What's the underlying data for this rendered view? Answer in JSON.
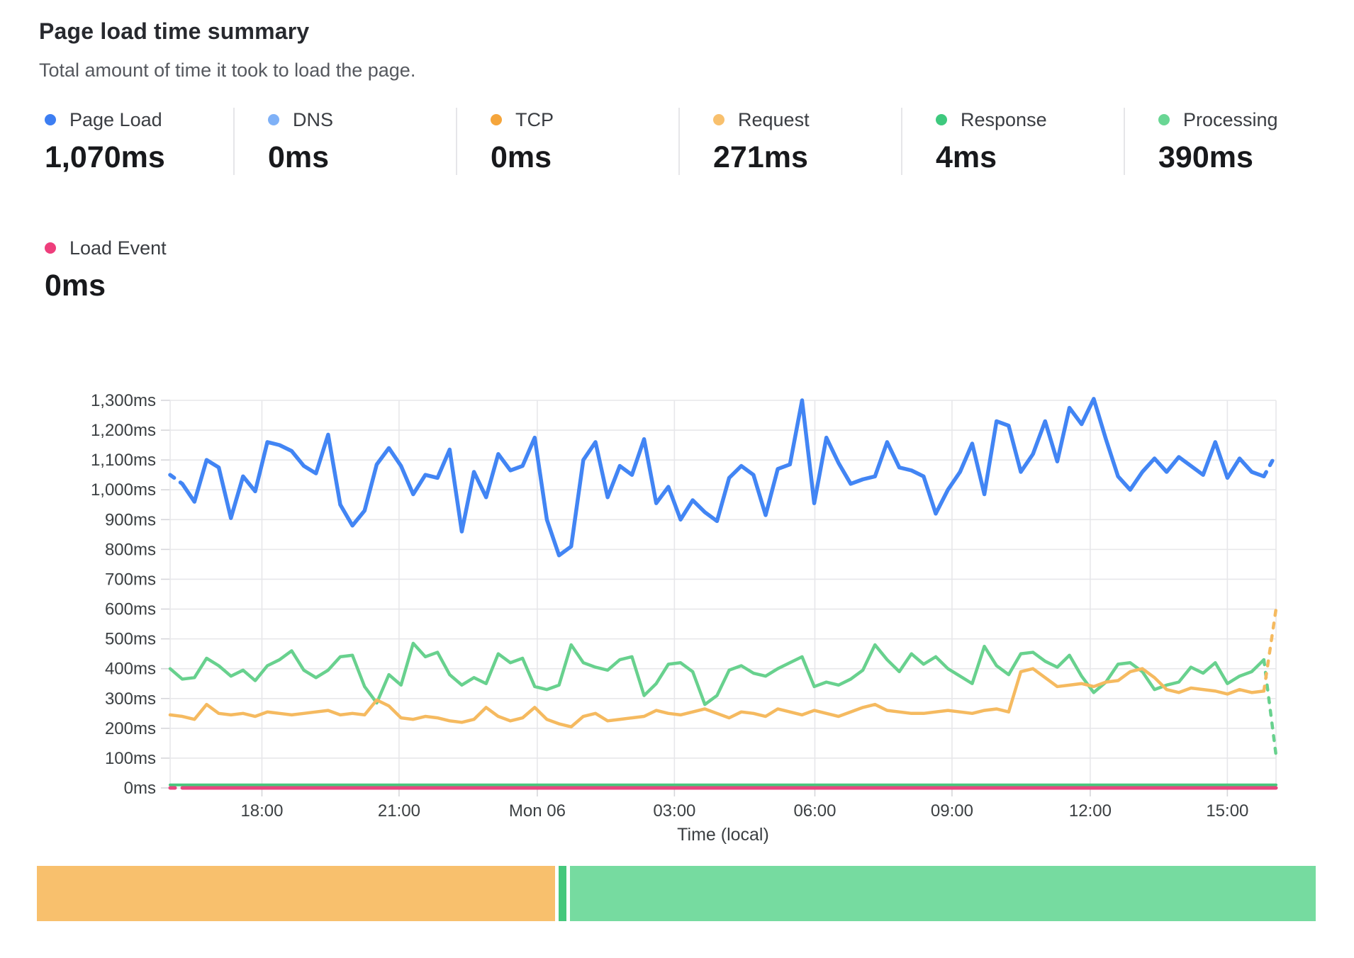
{
  "header": {
    "title": "Page load time summary",
    "subtitle": "Total amount of time it took to load the page."
  },
  "metrics": [
    {
      "label": "Page Load",
      "value": "1,070ms",
      "color": "#3d7ef2"
    },
    {
      "label": "DNS",
      "value": "0ms",
      "color": "#7fb1f7"
    },
    {
      "label": "TCP",
      "value": "0ms",
      "color": "#f5a53b"
    },
    {
      "label": "Request",
      "value": "271ms",
      "color": "#f8c06d"
    },
    {
      "label": "Response",
      "value": "4ms",
      "color": "#3ec97e"
    },
    {
      "label": "Processing",
      "value": "390ms",
      "color": "#69d694"
    }
  ],
  "secondary_metric": {
    "label": "Load Event",
    "value": "0ms",
    "color": "#ee3e7c"
  },
  "chart_data": {
    "type": "line",
    "title": "Page load time summary",
    "xlabel": "Time (local)",
    "ylabel": "ms",
    "ylim": [
      0,
      1300
    ],
    "grid": true,
    "legend_position": "top-metric-cards",
    "y_ticks": [
      "0ms",
      "100ms",
      "200ms",
      "300ms",
      "400ms",
      "500ms",
      "600ms",
      "700ms",
      "800ms",
      "900ms",
      "1,000ms",
      "1,100ms",
      "1,200ms",
      "1,300ms"
    ],
    "x_ticks": [
      {
        "label": "18:00",
        "f": 0.083
      },
      {
        "label": "21:00",
        "f": 0.207
      },
      {
        "label": "Mon 06",
        "f": 0.332
      },
      {
        "label": "03:00",
        "f": 0.456
      },
      {
        "label": "06:00",
        "f": 0.583
      },
      {
        "label": "09:00",
        "f": 0.707
      },
      {
        "label": "12:00",
        "f": 0.832
      },
      {
        "label": "15:00",
        "f": 0.956
      }
    ],
    "series": [
      {
        "name": "Page Load",
        "color": "#4285f4",
        "width": 5.5,
        "dash_start": true,
        "dash_end": true,
        "values": [
          1050,
          1020,
          960,
          1100,
          1075,
          905,
          1045,
          995,
          1160,
          1150,
          1130,
          1080,
          1055,
          1185,
          950,
          880,
          930,
          1085,
          1140,
          1080,
          985,
          1050,
          1040,
          1135,
          860,
          1060,
          975,
          1120,
          1065,
          1080,
          1175,
          900,
          780,
          810,
          1100,
          1160,
          975,
          1080,
          1050,
          1170,
          955,
          1010,
          900,
          965,
          925,
          895,
          1040,
          1080,
          1050,
          915,
          1070,
          1085,
          1300,
          955,
          1175,
          1090,
          1020,
          1035,
          1045,
          1160,
          1075,
          1065,
          1045,
          920,
          1000,
          1060,
          1155,
          985,
          1230,
          1215,
          1060,
          1120,
          1230,
          1095,
          1275,
          1220,
          1305,
          1170,
          1045,
          1000,
          1060,
          1105,
          1060,
          1110,
          1080,
          1050,
          1160,
          1040,
          1105,
          1060,
          1045,
          1120
        ]
      },
      {
        "name": "Processing",
        "color": "#68d18e",
        "width": 4.5,
        "dash_start": false,
        "dash_end": true,
        "values": [
          400,
          365,
          370,
          435,
          410,
          375,
          395,
          360,
          410,
          430,
          460,
          395,
          370,
          395,
          440,
          445,
          340,
          285,
          380,
          345,
          485,
          440,
          455,
          380,
          345,
          370,
          350,
          450,
          420,
          435,
          340,
          330,
          345,
          480,
          420,
          405,
          395,
          430,
          440,
          310,
          350,
          415,
          420,
          390,
          280,
          310,
          395,
          410,
          385,
          375,
          400,
          420,
          440,
          340,
          355,
          345,
          365,
          395,
          480,
          430,
          390,
          450,
          415,
          440,
          400,
          375,
          350,
          475,
          410,
          380,
          450,
          455,
          425,
          405,
          445,
          375,
          320,
          355,
          415,
          420,
          390,
          330,
          345,
          355,
          405,
          385,
          420,
          350,
          375,
          390,
          430,
          110
        ]
      },
      {
        "name": "Request",
        "color": "#f5ba60",
        "width": 4.5,
        "dash_start": false,
        "dash_end": true,
        "values": [
          245,
          240,
          230,
          280,
          250,
          245,
          250,
          240,
          255,
          250,
          245,
          250,
          255,
          260,
          245,
          250,
          245,
          295,
          275,
          235,
          230,
          240,
          235,
          225,
          220,
          230,
          270,
          240,
          225,
          235,
          270,
          230,
          215,
          205,
          240,
          250,
          225,
          230,
          235,
          240,
          260,
          250,
          245,
          255,
          265,
          250,
          235,
          255,
          250,
          240,
          265,
          255,
          245,
          260,
          250,
          240,
          255,
          270,
          280,
          260,
          255,
          250,
          250,
          255,
          260,
          255,
          250,
          260,
          265,
          255,
          390,
          400,
          370,
          340,
          345,
          350,
          340,
          355,
          360,
          390,
          400,
          370,
          330,
          320,
          335,
          330,
          325,
          315,
          330,
          320,
          325,
          600
        ]
      },
      {
        "name": "Response",
        "color": "#47c87d",
        "width": 4,
        "dash_start": false,
        "dash_end": false,
        "const": 10
      },
      {
        "name": "Load Event",
        "color": "#e8467f",
        "width": 5,
        "dash_start": true,
        "dash_end": false,
        "const": 0
      }
    ]
  },
  "breakdown_bar": {
    "segments": [
      {
        "name": "Request",
        "ms": 271,
        "color": "#f8c06d"
      },
      {
        "name": "Response",
        "ms": 4,
        "color": "#45c87c"
      },
      {
        "name": "Processing",
        "ms": 390,
        "color": "#76dba0"
      }
    ]
  }
}
